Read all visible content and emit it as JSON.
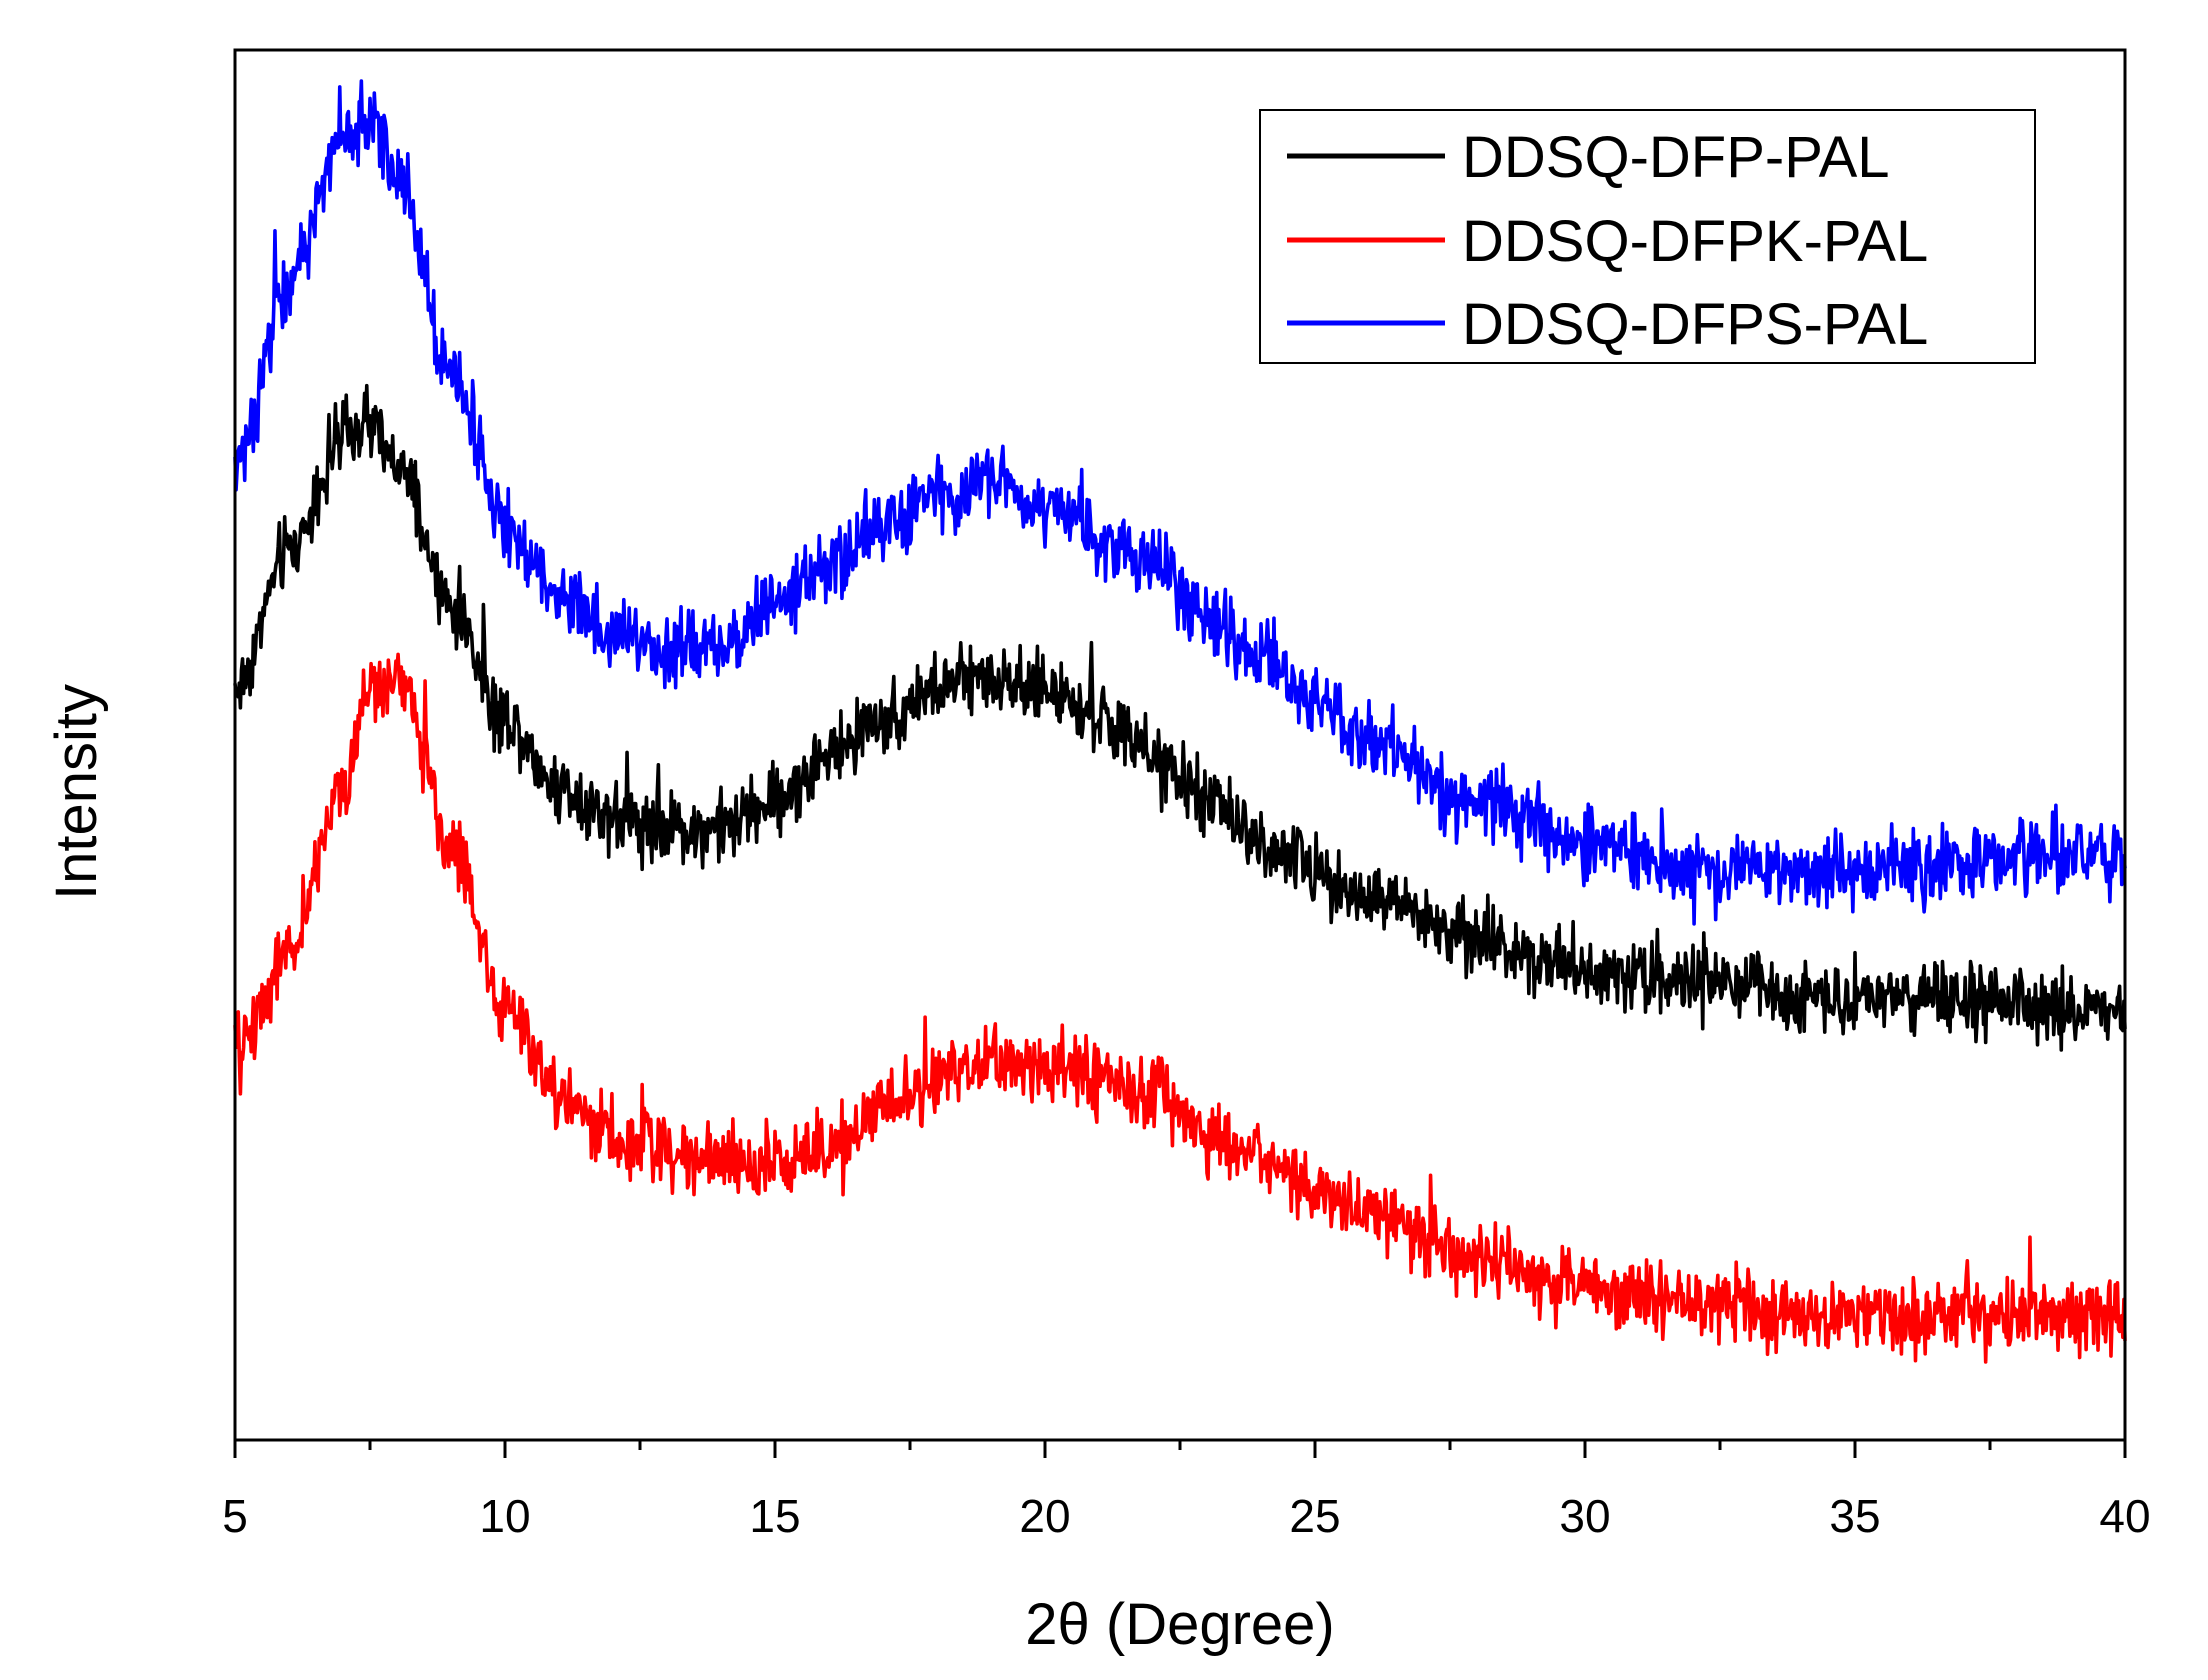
{
  "chart_data": {
    "type": "line",
    "title": "",
    "xlabel": "2θ  (Degree)",
    "ylabel": "Intensity",
    "xlim": [
      5,
      40
    ],
    "ylim": [
      0,
      100
    ],
    "y_ticks_shown": false,
    "x_ticks": [
      "5",
      "10",
      "15",
      "20",
      "25",
      "30",
      "35",
      "40"
    ],
    "x_tick_values": [
      5,
      10,
      15,
      20,
      25,
      30,
      35,
      40
    ],
    "x_minor_step": 2.5,
    "grid": false,
    "legend_position": "top-right",
    "series": [
      {
        "name": "DDSQ-DFP-PAL",
        "color": "#000000",
        "x": [
          5,
          6,
          7,
          7.5,
          8,
          9,
          10,
          11,
          12,
          13,
          14,
          15,
          16,
          17,
          18,
          19,
          20,
          21,
          22,
          23,
          24,
          25,
          26,
          28,
          30,
          32,
          34,
          36,
          38,
          40
        ],
        "values": [
          54,
          64,
          72,
          73,
          70,
          60,
          52,
          47,
          45,
          44,
          44,
          46,
          49,
          52,
          54,
          55,
          54,
          52,
          49,
          46,
          43,
          41,
          39,
          36,
          34,
          33,
          32,
          32,
          31,
          31
        ],
        "noise": 2.2
      },
      {
        "name": "DDSQ-DFPK-PAL",
        "color": "#ff0000",
        "x": [
          5,
          6,
          7,
          7.5,
          8,
          9,
          10,
          11,
          12,
          13,
          14,
          15,
          16,
          17,
          18,
          19,
          20,
          21,
          22,
          23,
          24,
          25,
          26,
          28,
          30,
          32,
          34,
          36,
          38,
          40
        ],
        "values": [
          28,
          35,
          47,
          54,
          55,
          43,
          31,
          25,
          22,
          21,
          20,
          20,
          21,
          24,
          26,
          27,
          27,
          26,
          25,
          22,
          20,
          18,
          16,
          13,
          11,
          10,
          9,
          9,
          9,
          9
        ],
        "noise": 2.2
      },
      {
        "name": "DDSQ-DFPS-PAL",
        "color": "#0000ff",
        "x": [
          5,
          6,
          7,
          7.5,
          8,
          9,
          10,
          11,
          12,
          13,
          14,
          15,
          16,
          17,
          18,
          19,
          20,
          21,
          22,
          23,
          24,
          25,
          26,
          28,
          30,
          32,
          34,
          36,
          38,
          40
        ],
        "values": [
          70,
          83,
          94,
          95,
          91,
          77,
          66,
          61,
          58,
          57,
          57,
          60,
          63,
          66,
          68,
          69,
          67,
          65,
          63,
          59,
          56,
          53,
          50,
          46,
          43,
          41,
          41,
          41,
          42,
          42
        ],
        "noise": 2.2
      }
    ]
  }
}
